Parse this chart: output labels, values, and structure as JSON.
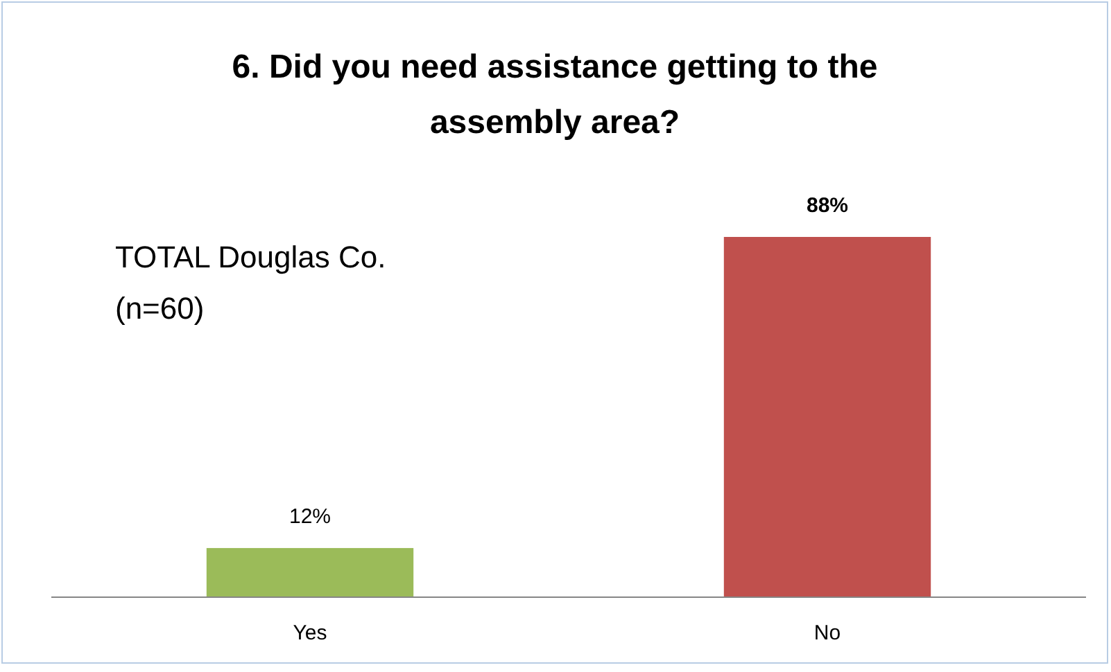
{
  "chart_data": {
    "type": "bar",
    "title": "6. Did you need assistance getting to the assembly area?",
    "categories": [
      "Yes",
      "No"
    ],
    "values": [
      12,
      88
    ],
    "colors": [
      "#9bbb59",
      "#c0504d"
    ],
    "value_labels": [
      "12%",
      "88%"
    ],
    "annotations": [
      "TOTAL Douglas Co.\n(n=60)"
    ]
  }
}
